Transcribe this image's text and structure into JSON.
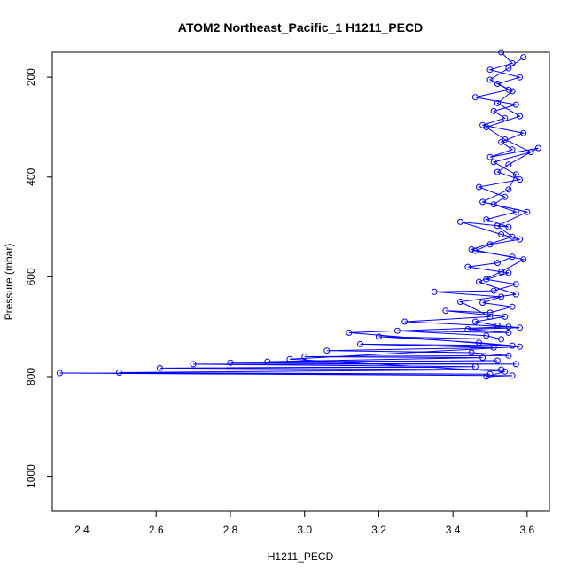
{
  "chart_data": {
    "type": "scatter",
    "title": "ATOM2 Northeast_Pacific_1 H1211_PECD",
    "xlabel": "H1211_PECD",
    "ylabel": "Pressure (mbar)",
    "xlim": [
      2.32,
      3.66
    ],
    "ylim": [
      1070,
      150
    ],
    "y_reversed": true,
    "x_ticks": [
      "2.4",
      "2.6",
      "2.8",
      "3.0",
      "3.2",
      "3.4",
      "3.6"
    ],
    "y_ticks": [
      "200",
      "400",
      "600",
      "800",
      "1000"
    ],
    "grid": false,
    "legend": "none",
    "colors": {
      "series": "#0000ff",
      "axis": "#000000"
    },
    "series": [
      {
        "marker": "open-circle",
        "line": true,
        "points": [
          [
            3.53,
            150
          ],
          [
            3.56,
            172
          ],
          [
            3.5,
            185
          ],
          [
            3.58,
            200
          ],
          [
            3.52,
            213
          ],
          [
            3.55,
            225
          ],
          [
            3.46,
            240
          ],
          [
            3.57,
            255
          ],
          [
            3.51,
            268
          ],
          [
            3.54,
            282
          ],
          [
            3.48,
            296
          ],
          [
            3.59,
            312
          ],
          [
            3.53,
            330
          ],
          [
            3.56,
            345
          ],
          [
            3.5,
            360
          ],
          [
            3.63,
            342
          ],
          [
            3.55,
            375
          ],
          [
            3.52,
            390
          ],
          [
            3.58,
            405
          ],
          [
            3.47,
            420
          ],
          [
            3.54,
            440
          ],
          [
            3.51,
            455
          ],
          [
            3.57,
            470
          ],
          [
            3.49,
            485
          ],
          [
            3.55,
            500
          ],
          [
            3.42,
            490
          ],
          [
            3.53,
            515
          ],
          [
            3.58,
            525
          ],
          [
            3.5,
            535
          ],
          [
            3.46,
            548
          ],
          [
            3.56,
            560
          ],
          [
            3.52,
            572
          ],
          [
            3.44,
            580
          ],
          [
            3.55,
            592
          ],
          [
            3.49,
            605
          ],
          [
            3.57,
            615
          ],
          [
            3.51,
            628
          ],
          [
            3.35,
            630
          ],
          [
            3.53,
            640
          ],
          [
            3.48,
            652
          ],
          [
            3.56,
            660
          ],
          [
            3.5,
            672
          ],
          [
            3.38,
            668
          ],
          [
            3.54,
            680
          ],
          [
            3.46,
            690
          ],
          [
            3.52,
            698
          ],
          [
            3.58,
            702
          ],
          [
            3.44,
            705
          ],
          [
            3.55,
            712
          ],
          [
            3.25,
            708
          ],
          [
            3.49,
            718
          ],
          [
            3.53,
            725
          ],
          [
            3.2,
            720
          ],
          [
            3.47,
            732
          ],
          [
            3.56,
            738
          ],
          [
            3.15,
            735
          ],
          [
            3.51,
            742
          ],
          [
            3.06,
            748
          ],
          [
            3.45,
            752
          ],
          [
            3.55,
            758
          ],
          [
            3.0,
            760
          ],
          [
            3.48,
            762
          ],
          [
            2.9,
            770
          ],
          [
            3.52,
            768
          ],
          [
            2.8,
            772
          ],
          [
            3.57,
            775
          ],
          [
            2.7,
            775
          ],
          [
            3.46,
            780
          ],
          [
            2.61,
            783
          ],
          [
            3.53,
            786
          ],
          [
            2.5,
            792
          ],
          [
            3.5,
            795
          ],
          [
            2.34,
            793
          ],
          [
            3.56,
            798
          ],
          [
            3.49,
            800
          ],
          [
            3.54,
            790
          ],
          [
            2.96,
            765
          ],
          [
            3.58,
            740
          ],
          [
            3.12,
            712
          ],
          [
            3.55,
            700
          ],
          [
            3.27,
            690
          ],
          [
            3.5,
            680
          ],
          [
            3.42,
            650
          ],
          [
            3.57,
            635
          ],
          [
            3.47,
            610
          ],
          [
            3.53,
            590
          ],
          [
            3.59,
            565
          ],
          [
            3.45,
            545
          ],
          [
            3.56,
            520
          ],
          [
            3.52,
            498
          ],
          [
            3.6,
            470
          ],
          [
            3.48,
            450
          ],
          [
            3.55,
            425
          ],
          [
            3.57,
            395
          ],
          [
            3.51,
            370
          ],
          [
            3.61,
            350
          ],
          [
            3.54,
            325
          ],
          [
            3.49,
            300
          ],
          [
            3.58,
            278
          ],
          [
            3.52,
            252
          ],
          [
            3.56,
            228
          ],
          [
            3.5,
            205
          ],
          [
            3.55,
            182
          ],
          [
            3.59,
            160
          ]
        ]
      }
    ]
  }
}
